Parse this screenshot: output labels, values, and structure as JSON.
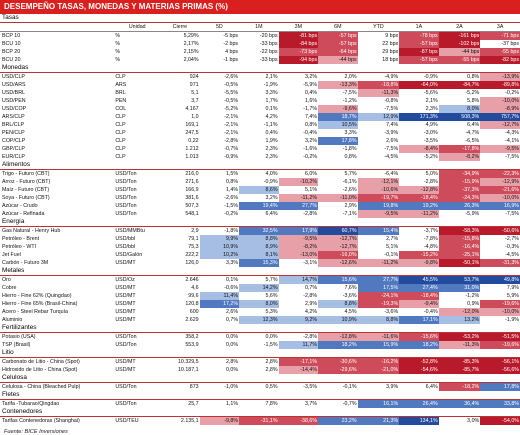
{
  "title": "DESEMPEÑO TASAS, MONEDAS Y MATERIAS PRIMAS (%)",
  "headers": [
    "",
    "Unidad",
    "Cierre",
    "5D",
    "1M",
    "3M",
    "6M",
    "YTD",
    "1A",
    "2A",
    "3A"
  ],
  "source": "Fuente: BICE Inversiones",
  "sections": [
    {
      "name": "Tasas",
      "rows": [
        [
          "BCP 10",
          "%",
          "5,29%",
          "-5 bps",
          "-20 bps",
          "-81 bps",
          "-57 bps",
          "9 bps",
          "-78 bps",
          "-161 bps",
          "-71 bps"
        ],
        [
          "BCU 10",
          "%",
          "2,17%",
          "-2 bps",
          "-33 bps",
          "-84 bps",
          "-57 bps",
          "22 bps",
          "-57 bps",
          "-102 bps",
          "-37 bps"
        ],
        [
          "BCP 20",
          "%",
          "2,15%",
          "4 bps",
          "-22 bps",
          "-73 bps",
          "-64 bps",
          "29 bps",
          "-87 bps",
          "-44 bps",
          "-55 bps"
        ],
        [
          "BCU 20",
          "%",
          "2,04%",
          "-1 bps",
          "-33 bps",
          "-94 bps",
          "-44 bps",
          "18 bps",
          "-57 bps",
          "-55 bps",
          "-82 bps"
        ]
      ]
    },
    {
      "name": "Monedas",
      "rows": [
        [
          "USD/CLP",
          "CLP",
          "924",
          "-2,6%",
          "2,1%",
          "3,2%",
          "2,0%",
          "-4,9%",
          "-0,9%",
          "0,8%",
          "-13,9%"
        ],
        [
          "USD/ARS",
          "ARS",
          "971",
          "-0,5%",
          "-1,9%",
          "-5,9%",
          "-13,3%",
          "-18,8%",
          "-64,0%",
          "-84,7%",
          "-89,8%"
        ],
        [
          "USD/BRL",
          "BRL",
          "5,1",
          "-5,5%",
          "3,3%",
          "0,4%",
          "-7,5%",
          "-11,3%",
          "-5,6%",
          "-5,2%",
          "-0,2%"
        ],
        [
          "USD/PEN",
          "PEN",
          "3,7",
          "-0,5%",
          "1,7%",
          "1,6%",
          "-1,2%",
          "-0,8%",
          "2,1%",
          "5,8%",
          "-10,0%"
        ],
        [
          "USD/COP",
          "COL",
          "4.167",
          "-5,2%",
          "0,1%",
          "-1,7%",
          "-9,6%",
          "-7,5%",
          "2,3%",
          "8,0%",
          "-8,9%"
        ],
        [
          "ARS/CLP",
          "CLP",
          "1,0",
          "-2,1%",
          "4,2%",
          "7,4%",
          "18,7%",
          "12,9%",
          "171,3%",
          "508,3%",
          "757,7%"
        ],
        [
          "BRL/CLP",
          "CLP",
          "169,1",
          "-2,1%",
          "-1,1%",
          "0,8%",
          "10,5%",
          "7,4%",
          "4,9%",
          "6,4%",
          "-12,7%"
        ],
        [
          "PEN/CLP",
          "CLP",
          "247,5",
          "-2,1%",
          "0,4%",
          "-0,4%",
          "3,3%",
          "-3,9%",
          "-3,0%",
          "-4,7%",
          "-4,3%"
        ],
        [
          "COP/CLP",
          "CLP",
          "0,22",
          "-2,8%",
          "1,9%",
          "3,2%",
          "17,8%",
          "2,6%",
          "-3,5%",
          "-6,5%",
          "-4,1%"
        ],
        [
          "GBP/CLP",
          "CLP",
          "1.212",
          "-0,7%",
          "2,3%",
          "-1,6%",
          "-1,8%",
          "-7,5%",
          "-8,4%",
          "-17,8%",
          "-9,5%"
        ],
        [
          "EUR/CLP",
          "CLP",
          "1.013",
          "-0,9%",
          "2,3%",
          "-0,2%",
          "0,8%",
          "-4,5%",
          "-5,2%",
          "-8,2%",
          "-7,5%"
        ]
      ]
    },
    {
      "name": "Alimentos",
      "rows": [
        [
          "Trigo - Futuro (CBT)",
          "USD/Ton",
          "216,0",
          "1,5%",
          "4,0%",
          "6,0%",
          "5,7%",
          "-6,4%",
          "5,0%",
          "-34,9%",
          "-22,3%"
        ],
        [
          "Arroz - Futuro (CBT)",
          "USD/Ton",
          "271,6",
          "0,8%",
          "-0,9%",
          "-10,2%",
          "-6,1%",
          "-12,1%",
          "-2,8%",
          "-15,9%",
          "-12,9%"
        ],
        [
          "Maíz - Futuro (CBT)",
          "USD/Ton",
          "166,9",
          "1,4%",
          "8,6%",
          "5,1%",
          "-2,6%",
          "-10,6%",
          "-12,8%",
          "-37,3%",
          "-21,6%"
        ],
        [
          "Soya - Futuro (CBT)",
          "USD/Ton",
          "381,6",
          "-2,6%",
          "3,2%",
          "-11,2%",
          "-11,0%",
          "-19,7%",
          "-18,4%",
          "-24,3%",
          "-10,0%"
        ],
        [
          "Azúcar - Crudo",
          "USD/Ton",
          "507,3",
          "-1,5%",
          "19,4%",
          "27,7%",
          "2,9%",
          "19,8%",
          "19,2%",
          "26,3%",
          "16,9%"
        ],
        [
          "Azúcar - Refinada",
          "USD/Ton",
          "548,1",
          "-0,2%",
          "6,4%",
          "-2,8%",
          "-7,1%",
          "-9,5%",
          "-11,2%",
          "-5,9%",
          "-7,5%"
        ]
      ]
    },
    {
      "name": "Energía",
      "rows": [
        [
          "Gas Natural - Henry Hub",
          "USD/MMBtu",
          "2,9",
          "-1,8%",
          "32,5%",
          "17,9%",
          "60,7%",
          "15,4%",
          "-3,7%",
          "-58,3%",
          "-50,6%"
        ],
        [
          "Petróleo - Brent",
          "USD/bbl",
          "79,1",
          "9,9%",
          "8,8%",
          "-9,5%",
          "-12,7%",
          "2,7%",
          "-7,8%",
          "-15,8%",
          "-2,7%"
        ],
        [
          "Petróleo - WTI",
          "USD/bbl",
          "75,3",
          "10,9%",
          "8,9%",
          "-8,2%",
          "-12,7%",
          "5,1%",
          "-4,8%",
          "-16,4%",
          "-0,3%"
        ],
        [
          "Jet Fuel",
          "USD/Galón",
          "222,2",
          "10,2%",
          "8,1%",
          "-13,0%",
          "-16,0%",
          "-0,1%",
          "-15,2%",
          "-25,1%",
          "-4,5%"
        ],
        [
          "Carbón - Futuro 3M",
          "USD/MT",
          "126,0",
          "3,3%",
          "15,3%",
          "-3,1%",
          "-12,6%",
          "-11,2%",
          "-9,8%",
          "-50,1%",
          "-31,3%"
        ]
      ]
    },
    {
      "name": "Metales",
      "rows": [
        [
          "Oro",
          "USD/Oz",
          "2.646",
          "0,1%",
          "5,7%",
          "14,7%",
          "15,6%",
          "27,7%",
          "45,5%",
          "53,7%",
          "49,8%"
        ],
        [
          "Cobre",
          "USD/MT",
          "4,6",
          "-0,6%",
          "14,2%",
          "0,7%",
          "7,6%",
          "17,5%",
          "27,4%",
          "31,0%",
          "7,9%"
        ],
        [
          "Hierro - Fine 62% (Quingdao)",
          "USD/MT",
          "99,6",
          "11,4%",
          "5,6%",
          "-2,8%",
          "-3,6%",
          "-24,1%",
          "-18,4%",
          "-1,2%",
          "5,9%"
        ],
        [
          "Hierro - Fine 65% (Brasil-China)",
          "USD/MT",
          "120,8",
          "17,2%",
          "8,0%",
          "2,9%",
          "8,8%",
          "-19,3%",
          "-9,4%",
          "0,9%",
          "-19,6%"
        ],
        [
          "Acero - Steel Rebar Turquía",
          "USD/MT",
          "600",
          "2,6%",
          "5,3%",
          "4,2%",
          "4,5%",
          "-3,6%",
          "-0,4%",
          "-12,0%",
          "-10,0%"
        ],
        [
          "Aluminio",
          "USD/MT",
          "2.629",
          "0,7%",
          "12,3%",
          "9,2%",
          "10,9%",
          "8,8%",
          "17,1%",
          "13,2%",
          "-1,9%"
        ]
      ]
    },
    {
      "name": "Fertilizantes",
      "rows": [
        [
          "Potasio (USA)",
          "USD/Ton",
          "358,2",
          "0,0%",
          "0,0%",
          "-2,8%",
          "-12,8%",
          "-11,6%",
          "-15,6%",
          "-53,2%",
          "-51,5%"
        ],
        [
          "TSP (Brasil)",
          "USD/Ton",
          "553,9",
          "0,0%",
          "-1,5%",
          "11,7%",
          "18,2%",
          "15,9%",
          "18,2%",
          "-11,3%",
          "-19,6%"
        ]
      ]
    },
    {
      "name": "Litio",
      "rows": [
        [
          "Carbonato de Litio - China (Spot)",
          "USD/MT",
          "10.329,5",
          "2,8%",
          "2,8%",
          "-17,1%",
          "-30,6%",
          "-16,2%",
          "-52,8%",
          "-85,3%",
          "-56,1%"
        ],
        [
          "Hidroxido de Litio - China (Spot)",
          "USD/MT",
          "10.187,1",
          "0,0%",
          "2,8%",
          "-14,4%",
          "-29,6%",
          "-21,0%",
          "-54,6%",
          "-85,7%",
          "-56,6%"
        ]
      ]
    },
    {
      "name": "Celulosa",
      "rows": [
        [
          "Celulosa - China (Bleached Pulp)",
          "USD/Ton",
          "873",
          "-1,0%",
          "0,5%",
          "-3,5%",
          "-0,1%",
          "3,9%",
          "6,4%",
          "-18,2%",
          "17,8%"
        ]
      ]
    },
    {
      "name": "Fletes",
      "rows": [
        [
          "Tarifa -Tubarao/Qingdao",
          "USD/Ton",
          "25,7",
          "1,1%",
          "7,8%",
          "3,7%",
          "-0,7%",
          "16,1%",
          "26,4%",
          "36,4%",
          "33,8%"
        ]
      ]
    },
    {
      "name": "Contenedores",
      "rows": [
        [
          "Tarifas Contenedoras (Shanghai)",
          "USD/TEU",
          "2.135,1",
          "-9,8%",
          "-31,1%",
          "-38,6%",
          "23,2%",
          "21,3%",
          "134,1%",
          "3,0%",
          "-54,0%"
        ]
      ]
    }
  ]
}
